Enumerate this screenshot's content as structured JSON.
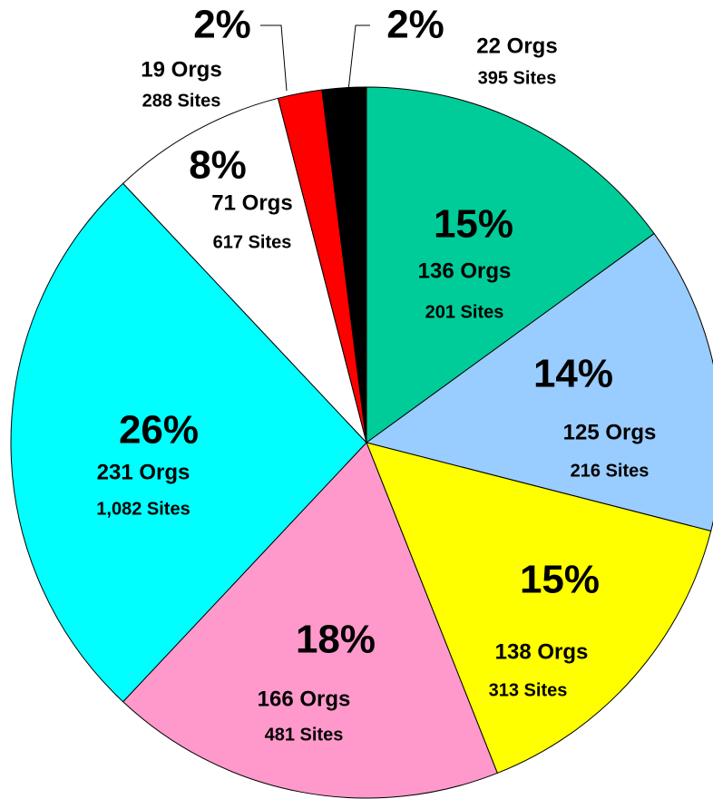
{
  "chart_data": {
    "type": "pie",
    "values": [
      15,
      14,
      15,
      18,
      26,
      8,
      2,
      2
    ],
    "value_labels": [
      "15%",
      "14%",
      "15%",
      "18%",
      "26%",
      "8%",
      "2%",
      "2%"
    ],
    "colors": [
      "#00CC99",
      "#99CCFF",
      "#FFFF00",
      "#FF99CC",
      "#00FFFF",
      "#FFFFFF",
      "#FF0000",
      "#000000"
    ],
    "org_labels": [
      "136 Orgs",
      "125 Orgs",
      "138 Orgs",
      "166 Orgs",
      "231 Orgs",
      "71 Orgs",
      "19 Orgs",
      "22 Orgs"
    ],
    "site_labels": [
      "201 Sites",
      "216 Sites",
      "313 Sites",
      "481 Sites",
      "1,082 Sites",
      "617 Sites",
      "288 Sites",
      "395 Sites"
    ]
  }
}
